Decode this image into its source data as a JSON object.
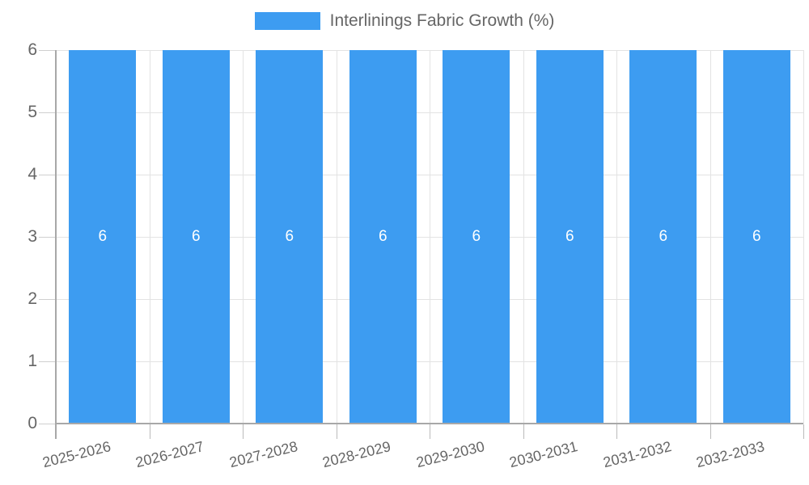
{
  "legend": {
    "label": "Interlinings Fabric Growth (%)"
  },
  "chart_data": {
    "type": "bar",
    "title": "Interlinings Fabric Growth (%)",
    "categories": [
      "2025-2026",
      "2026-2027",
      "2027-2028",
      "2028-2029",
      "2029-2030",
      "2030-2031",
      "2031-2032",
      "2032-2033"
    ],
    "values": [
      6,
      6,
      6,
      6,
      6,
      6,
      6,
      6
    ],
    "value_labels": [
      "6",
      "6",
      "6",
      "6",
      "6",
      "6",
      "6",
      "6"
    ],
    "xlabel": "",
    "ylabel": "",
    "ylim": [
      0,
      6
    ],
    "yticks": [
      0,
      1,
      2,
      3,
      4,
      5,
      6
    ],
    "grid": true,
    "legend_position": "top-center",
    "colors": {
      "bar": "#3d9cf1",
      "grid": "#e3e3e3",
      "axis": "#a8a8a8",
      "tick_text": "#666666",
      "value_label": "#ffffff"
    }
  }
}
